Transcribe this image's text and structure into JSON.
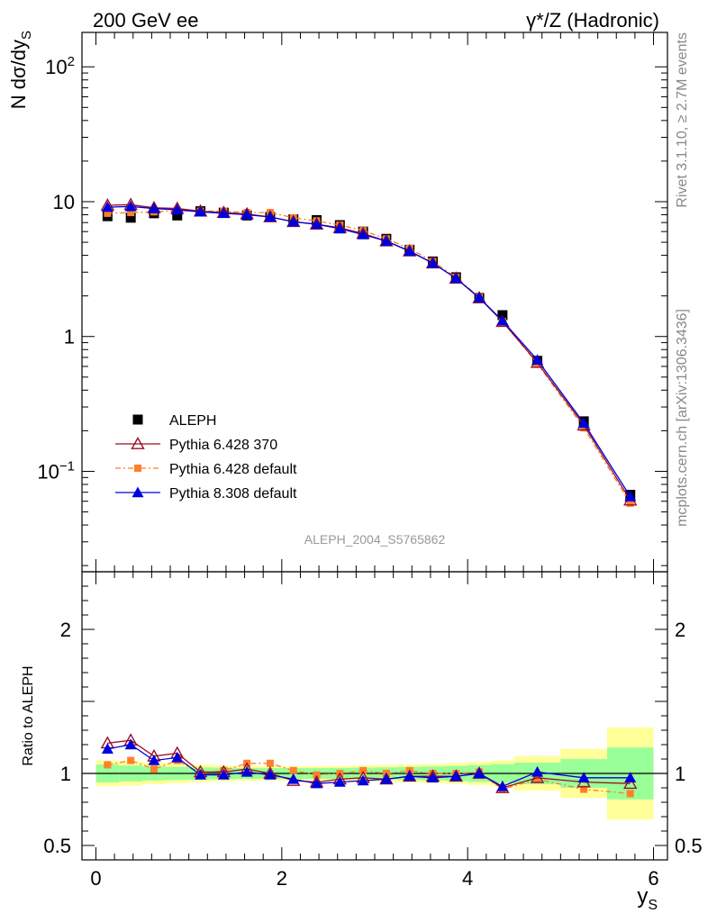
{
  "header": {
    "left": "200 GeV ee",
    "right": "γ*/Z (Hadronic)"
  },
  "side_labels": {
    "rivet": "Rivet 3.1.10, ≥ 2.7M events",
    "mcplots": "mcplots.cern.ch [arXiv:1306.3436]"
  },
  "analysis_label": "ALEPH_2004_S5765862",
  "colors": {
    "aleph": "#000000",
    "py6_370": "#9b0f23",
    "py6_default": "#ff7f2a",
    "py8_default": "#0000dd",
    "band_inner": "#99ff99",
    "band_outer": "#ffff99"
  },
  "chart_data": [
    {
      "type": "scatter",
      "panel": "main",
      "ylabel": "N dσ/dy_S",
      "yscale": "log",
      "ylim": [
        0.018,
        180
      ],
      "xlim": [
        -0.15,
        6.15
      ],
      "yticks": [
        "10^2",
        "10",
        "1",
        "10^-1"
      ],
      "legend_position": "lower-left",
      "x": [
        0.125,
        0.375,
        0.625,
        0.875,
        1.125,
        1.375,
        1.625,
        1.875,
        2.125,
        2.375,
        2.625,
        2.875,
        3.125,
        3.375,
        3.625,
        3.875,
        4.125,
        4.375,
        4.75,
        5.25,
        5.75
      ],
      "series": [
        {
          "name": "ALEPH",
          "key": "aleph",
          "marker": "square",
          "values": [
            7.8,
            7.6,
            8.2,
            7.9,
            8.5,
            8.3,
            7.9,
            7.7,
            7.4,
            7.3,
            6.7,
            6.0,
            5.3,
            4.4,
            3.6,
            2.75,
            1.93,
            1.44,
            0.66,
            0.235,
            0.067
          ]
        },
        {
          "name": "Pythia 6.428 370",
          "key": "py6_370",
          "marker": "open-triangle",
          "values": [
            9.4,
            9.5,
            9.0,
            8.9,
            8.5,
            8.3,
            8.1,
            7.7,
            7.1,
            6.8,
            6.4,
            5.8,
            5.1,
            4.3,
            3.5,
            2.7,
            1.93,
            1.29,
            0.64,
            0.22,
            0.061
          ]
        },
        {
          "name": "Pythia 6.428 default",
          "key": "py6_default",
          "marker": "square-small",
          "dashed": true,
          "values": [
            8.2,
            8.3,
            8.4,
            8.6,
            8.5,
            8.5,
            8.3,
            8.3,
            7.6,
            7.2,
            6.7,
            6.1,
            5.3,
            4.5,
            3.6,
            2.75,
            1.95,
            1.29,
            0.63,
            0.21,
            0.058
          ]
        },
        {
          "name": "Pythia 8.308 default",
          "key": "py8_default",
          "marker": "triangle",
          "values": [
            9.1,
            9.2,
            8.9,
            8.7,
            8.4,
            8.2,
            8.0,
            7.7,
            7.1,
            6.8,
            6.3,
            5.7,
            5.1,
            4.3,
            3.5,
            2.7,
            1.94,
            1.31,
            0.67,
            0.228,
            0.065
          ]
        }
      ]
    },
    {
      "type": "line",
      "panel": "ratio",
      "ylabel": "Ratio to ALEPH",
      "xlabel": "y_S",
      "ylim": [
        0.4,
        2.4
      ],
      "yticks": [
        "2",
        "1",
        "0.5"
      ],
      "xticks": [
        "0",
        "2",
        "4",
        "6"
      ],
      "reference_line": 1,
      "x": [
        0.125,
        0.375,
        0.625,
        0.875,
        1.125,
        1.375,
        1.625,
        1.875,
        2.125,
        2.375,
        2.625,
        2.875,
        3.125,
        3.375,
        3.625,
        3.875,
        4.125,
        4.375,
        4.75,
        5.25,
        5.75
      ],
      "bins": [
        [
          0,
          0.25
        ],
        [
          0.25,
          0.5
        ],
        [
          0.5,
          0.75
        ],
        [
          0.75,
          1.0
        ],
        [
          1.0,
          1.25
        ],
        [
          1.25,
          1.5
        ],
        [
          1.5,
          1.75
        ],
        [
          1.75,
          2.0
        ],
        [
          2.0,
          2.25
        ],
        [
          2.25,
          2.5
        ],
        [
          2.5,
          2.75
        ],
        [
          2.75,
          3.0
        ],
        [
          3.0,
          3.25
        ],
        [
          3.25,
          3.5
        ],
        [
          3.5,
          3.75
        ],
        [
          3.75,
          4.0
        ],
        [
          4.0,
          4.25
        ],
        [
          4.25,
          4.5
        ],
        [
          4.5,
          5.0
        ],
        [
          5.0,
          5.5
        ],
        [
          5.5,
          6.0
        ]
      ],
      "band_inner": [
        0.062,
        0.055,
        0.048,
        0.045,
        0.042,
        0.04,
        0.038,
        0.037,
        0.037,
        0.037,
        0.038,
        0.04,
        0.042,
        0.045,
        0.048,
        0.052,
        0.058,
        0.065,
        0.075,
        0.1,
        0.18
      ],
      "band_outer": [
        0.09,
        0.085,
        0.075,
        0.068,
        0.06,
        0.055,
        0.052,
        0.05,
        0.05,
        0.05,
        0.052,
        0.055,
        0.058,
        0.062,
        0.066,
        0.072,
        0.08,
        0.09,
        0.12,
        0.17,
        0.32
      ],
      "series": [
        {
          "name": "Pythia 6.428 370",
          "key": "py6_370",
          "marker": "open-triangle",
          "values": [
            1.21,
            1.23,
            1.12,
            1.14,
            1.01,
            1.01,
            1.03,
            1.0,
            0.95,
            0.94,
            0.96,
            0.97,
            0.96,
            0.98,
            0.98,
            0.98,
            1.0,
            0.9,
            0.97,
            0.94,
            0.93
          ]
        },
        {
          "name": "Pythia 6.428 default",
          "key": "py6_default",
          "marker": "square-small",
          "dashed": true,
          "values": [
            1.06,
            1.09,
            1.03,
            1.09,
            1.0,
            1.02,
            1.07,
            1.07,
            1.02,
            0.99,
            1.0,
            1.02,
            1.0,
            1.02,
            1.0,
            1.0,
            1.01,
            0.89,
            0.96,
            0.89,
            0.86
          ]
        },
        {
          "name": "Pythia 8.308 default",
          "key": "py8_default",
          "marker": "triangle",
          "values": [
            1.17,
            1.2,
            1.09,
            1.11,
            0.99,
            0.99,
            1.01,
            0.99,
            0.96,
            0.93,
            0.94,
            0.95,
            0.96,
            0.98,
            0.97,
            0.98,
            1.0,
            0.91,
            1.01,
            0.97,
            0.97
          ]
        }
      ]
    }
  ]
}
